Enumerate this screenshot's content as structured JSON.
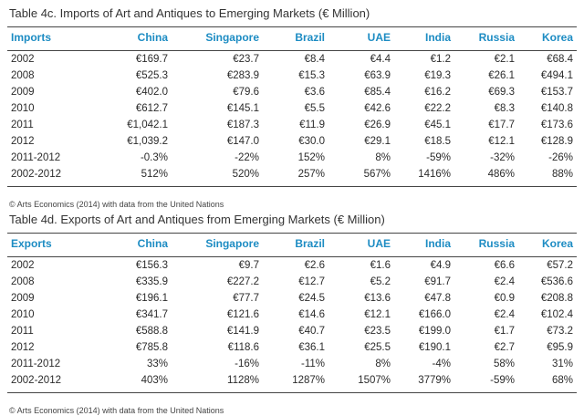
{
  "colors": {
    "header_text": "#1d8cc3",
    "body_text": "#2b2b2b",
    "rule": "#444444"
  },
  "imports": {
    "title": "Table 4c. Imports of Art and Antiques to Emerging Markets (€ Million)",
    "header": [
      "Imports",
      "China",
      "Singapore",
      "Brazil",
      "UAE",
      "India",
      "Russia",
      "Korea"
    ],
    "rows": [
      [
        "2002",
        "€169.7",
        "€23.7",
        "€8.4",
        "€4.4",
        "€1.2",
        "€2.1",
        "€68.4"
      ],
      [
        "2008",
        "€525.3",
        "€283.9",
        "€15.3",
        "€63.9",
        "€19.3",
        "€26.1",
        "€494.1"
      ],
      [
        "2009",
        "€402.0",
        "€79.6",
        "€3.6",
        "€85.4",
        "€16.2",
        "€69.3",
        "€153.7"
      ],
      [
        "2010",
        "€612.7",
        "€145.1",
        "€5.5",
        "€42.6",
        "€22.2",
        "€8.3",
        "€140.8"
      ],
      [
        "2011",
        "€1,042.1",
        "€187.3",
        "€11.9",
        "€26.9",
        "€45.1",
        "€17.7",
        "€173.6"
      ],
      [
        "2012",
        "€1,039.2",
        "€147.0",
        "€30.0",
        "€29.1",
        "€18.5",
        "€12.1",
        "€128.9"
      ],
      [
        "2011-2012",
        "-0.3%",
        "-22%",
        "152%",
        "8%",
        "-59%",
        "-32%",
        "-26%"
      ],
      [
        "2002-2012",
        "512%",
        "520%",
        "257%",
        "567%",
        "1416%",
        "486%",
        "88%"
      ]
    ],
    "source": "© Arts Economics (2014) with data from the United Nations"
  },
  "exports": {
    "title": "Table 4d. Exports of Art and Antiques from Emerging Markets (€ Million)",
    "header": [
      "Exports",
      "China",
      "Singapore",
      "Brazil",
      "UAE",
      "India",
      "Russia",
      "Korea"
    ],
    "rows": [
      [
        "2002",
        "€156.3",
        "€9.7",
        "€2.6",
        "€1.6",
        "€4.9",
        "€6.6",
        "€57.2"
      ],
      [
        "2008",
        "€335.9",
        "€227.2",
        "€12.7",
        "€5.2",
        "€91.7",
        "€2.4",
        "€536.6"
      ],
      [
        "2009",
        "€196.1",
        "€77.7",
        "€24.5",
        "€13.6",
        "€47.8",
        "€0.9",
        "€208.8"
      ],
      [
        "2010",
        "€341.7",
        "€121.6",
        "€14.6",
        "€12.1",
        "€166.0",
        "€2.4",
        "€102.4"
      ],
      [
        "2011",
        "€588.8",
        "€141.9",
        "€40.7",
        "€23.5",
        "€199.0",
        "€1.7",
        "€73.2"
      ],
      [
        "2012",
        "€785.8",
        "€118.6",
        "€36.1",
        "€25.5",
        "€190.1",
        "€2.7",
        "€95.9"
      ],
      [
        "2011-2012",
        "33%",
        "-16%",
        "-11%",
        "8%",
        "-4%",
        "58%",
        "31%"
      ],
      [
        "2002-2012",
        "403%",
        "1128%",
        "1287%",
        "1507%",
        "3779%",
        "-59%",
        "68%"
      ]
    ],
    "source": "© Arts Economics (2014) with data from the United Nations"
  }
}
